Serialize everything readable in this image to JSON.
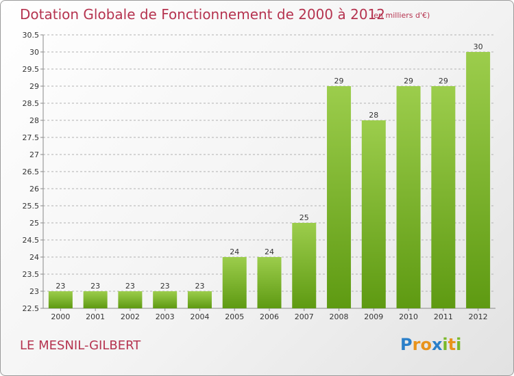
{
  "header": {
    "title": "Dotation Globale de Fonctionnement de 2000 à 2012",
    "unit": "(en milliers d'€)"
  },
  "footer": {
    "place": "LE MESNIL-GILBERT",
    "logo_text": "Proxiti"
  },
  "colors": {
    "title": "#b5334f",
    "bar_light": "#9ccd4c",
    "bar_dark": "#5e9a12",
    "grid": "#b0b0b0"
  },
  "chart_data": {
    "type": "bar",
    "title": "Dotation Globale de Fonctionnement de 2000 à 2012",
    "subtitle": "(en milliers d'€)",
    "categories": [
      "2000",
      "2001",
      "2002",
      "2003",
      "2004",
      "2005",
      "2006",
      "2007",
      "2008",
      "2009",
      "2010",
      "2011",
      "2012"
    ],
    "values": [
      23,
      23,
      23,
      23,
      23,
      24,
      24,
      25,
      29,
      28,
      29,
      29,
      30
    ],
    "data_labels": [
      "23",
      "23",
      "23",
      "23",
      "23",
      "24",
      "24",
      "25",
      "29",
      "28",
      "29",
      "29",
      "30"
    ],
    "ylim": [
      22.5,
      30.5
    ],
    "yticks": [
      "22.5",
      "23",
      "23.5",
      "24",
      "24.5",
      "25",
      "25.5",
      "26",
      "26.5",
      "27",
      "27.5",
      "28",
      "28.5",
      "29",
      "29.5",
      "30",
      "30.5"
    ],
    "xlabel": "",
    "ylabel": "",
    "grid": true,
    "grid_style": "dashed horizontal"
  }
}
